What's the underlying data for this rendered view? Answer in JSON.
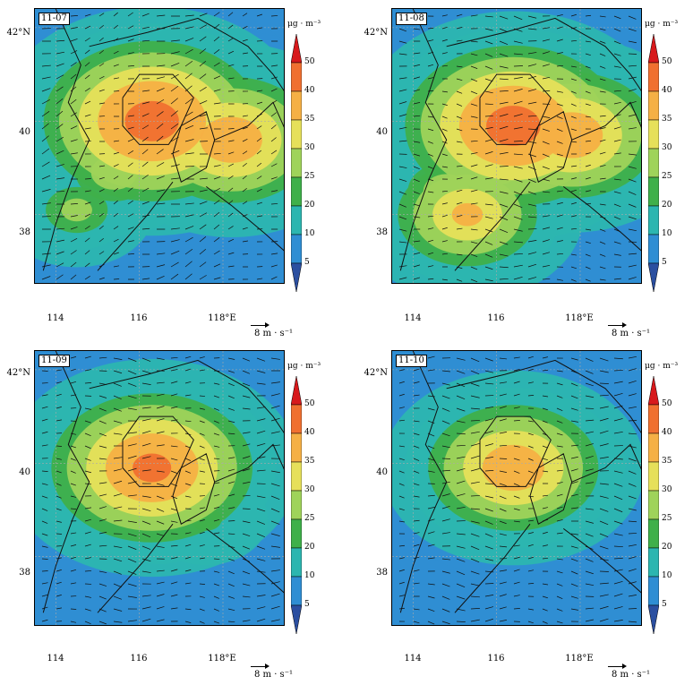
{
  "panels": [
    {
      "date": "11-07",
      "hotspots": [
        [
          116.3,
          40.0,
          48
        ],
        [
          116.8,
          39.9,
          40
        ],
        [
          118.2,
          39.6,
          42
        ],
        [
          115.4,
          38.9,
          30
        ],
        [
          114.5,
          38.1,
          28
        ],
        [
          113.8,
          40.4,
          22
        ]
      ],
      "base": 10
    },
    {
      "date": "11-08",
      "hotspots": [
        [
          116.4,
          39.9,
          48
        ],
        [
          117.8,
          39.7,
          42
        ],
        [
          115.3,
          38.0,
          38
        ],
        [
          114.8,
          38.5,
          30
        ],
        [
          116.0,
          39.0,
          30
        ]
      ],
      "base": 10
    },
    {
      "date": "11-09",
      "hotspots": [
        [
          116.3,
          39.9,
          46
        ],
        [
          117.6,
          38.8,
          24
        ],
        [
          116.5,
          38.7,
          22
        ]
      ],
      "base": 8
    },
    {
      "date": "11-10",
      "hotspots": [
        [
          116.4,
          39.9,
          42
        ],
        [
          117.8,
          40.0,
          22
        ]
      ],
      "base": 6
    }
  ],
  "axes": {
    "y_ticks": [
      "42°N",
      "40",
      "38"
    ],
    "x_ticks": [
      "114",
      "116",
      "118°E"
    ]
  },
  "colorbar": {
    "unit": "μg · m⁻³",
    "labels": [
      "50",
      "40",
      "35",
      "30",
      "25",
      "20",
      "10",
      "5"
    ],
    "colors": [
      "#d7191c",
      "#f07030",
      "#f5b045",
      "#e6e05a",
      "#9fd35a",
      "#3fb04a",
      "#2cb6b0",
      "#2f8ed3",
      "#2b4fa0"
    ]
  },
  "reference_vector": {
    "label": "8  m · s⁻¹"
  }
}
